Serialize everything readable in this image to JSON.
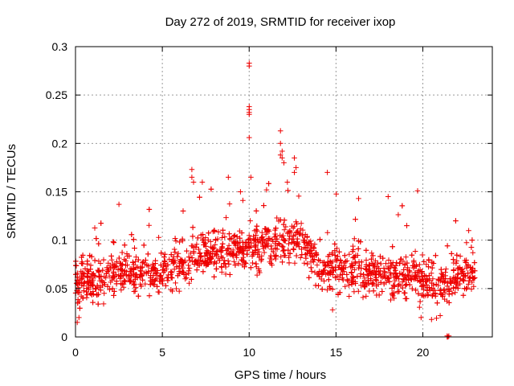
{
  "chart_data": {
    "type": "scatter",
    "title": "Day 272 of 2019, SRMTID for receiver ixop",
    "xlabel": "GPS time / hours",
    "ylabel": "SRMTID / TECUs",
    "xlim": [
      0,
      24
    ],
    "ylim": [
      0,
      0.3
    ],
    "x_ticks": [
      0,
      5,
      10,
      15,
      20
    ],
    "x_tick_labels": [
      "0",
      "5",
      "10",
      "15",
      "20"
    ],
    "y_ticks": [
      0,
      0.05,
      0.1,
      0.15,
      0.2,
      0.25,
      0.3
    ],
    "y_tick_labels": [
      "0",
      "0.05",
      "0.1",
      "0.15",
      "0.2",
      "0.25",
      "0.3"
    ],
    "grid": true,
    "series": [
      {
        "name": "SRMTID",
        "color": "#ee0000",
        "marker": "plus",
        "trend": [
          [
            0,
            0.058
          ],
          [
            1,
            0.06
          ],
          [
            2,
            0.065
          ],
          [
            3,
            0.066
          ],
          [
            4,
            0.067
          ],
          [
            5,
            0.068
          ],
          [
            6,
            0.075
          ],
          [
            7,
            0.085
          ],
          [
            8,
            0.088
          ],
          [
            9,
            0.09
          ],
          [
            10,
            0.092
          ],
          [
            11,
            0.094
          ],
          [
            12,
            0.098
          ],
          [
            13,
            0.1
          ],
          [
            14,
            0.072
          ],
          [
            15,
            0.07
          ],
          [
            16,
            0.068
          ],
          [
            17,
            0.066
          ],
          [
            18,
            0.065
          ],
          [
            19,
            0.063
          ],
          [
            20,
            0.058
          ],
          [
            21,
            0.052
          ],
          [
            22,
            0.064
          ],
          [
            23,
            0.066
          ]
        ],
        "peaks": [
          [
            10.0,
            0.283
          ],
          [
            10.0,
            0.28
          ],
          [
            10.0,
            0.238
          ],
          [
            10.0,
            0.235
          ],
          [
            10.0,
            0.232
          ],
          [
            10.0,
            0.23
          ],
          [
            10.0,
            0.206
          ],
          [
            10.1,
            0.165
          ],
          [
            11.8,
            0.213
          ],
          [
            11.8,
            0.2
          ],
          [
            11.9,
            0.192
          ],
          [
            11.8,
            0.188
          ],
          [
            11.9,
            0.185
          ],
          [
            12.0,
            0.18
          ],
          [
            12.6,
            0.185
          ],
          [
            12.7,
            0.175
          ],
          [
            12.6,
            0.17
          ],
          [
            6.7,
            0.173
          ],
          [
            6.7,
            0.165
          ],
          [
            6.8,
            0.16
          ],
          [
            14.5,
            0.17
          ],
          [
            8.8,
            0.165
          ],
          [
            7.3,
            0.16
          ],
          [
            19.7,
            0.151
          ],
          [
            16.3,
            0.143
          ],
          [
            18.0,
            0.145
          ],
          [
            2.5,
            0.137
          ],
          [
            9.5,
            0.15
          ],
          [
            11.0,
            0.152
          ],
          [
            12.2,
            0.16
          ]
        ],
        "low_points": [
          [
            21.4,
            0.001
          ],
          [
            21.45,
            0.0
          ],
          [
            21.5,
            0.001
          ],
          [
            21.4,
            0.0
          ],
          [
            0.1,
            0.015
          ],
          [
            0.2,
            0.02
          ],
          [
            14.8,
            0.028
          ],
          [
            19.9,
            0.02
          ],
          [
            20.5,
            0.018
          ],
          [
            21.0,
            0.022
          ]
        ]
      }
    ]
  }
}
